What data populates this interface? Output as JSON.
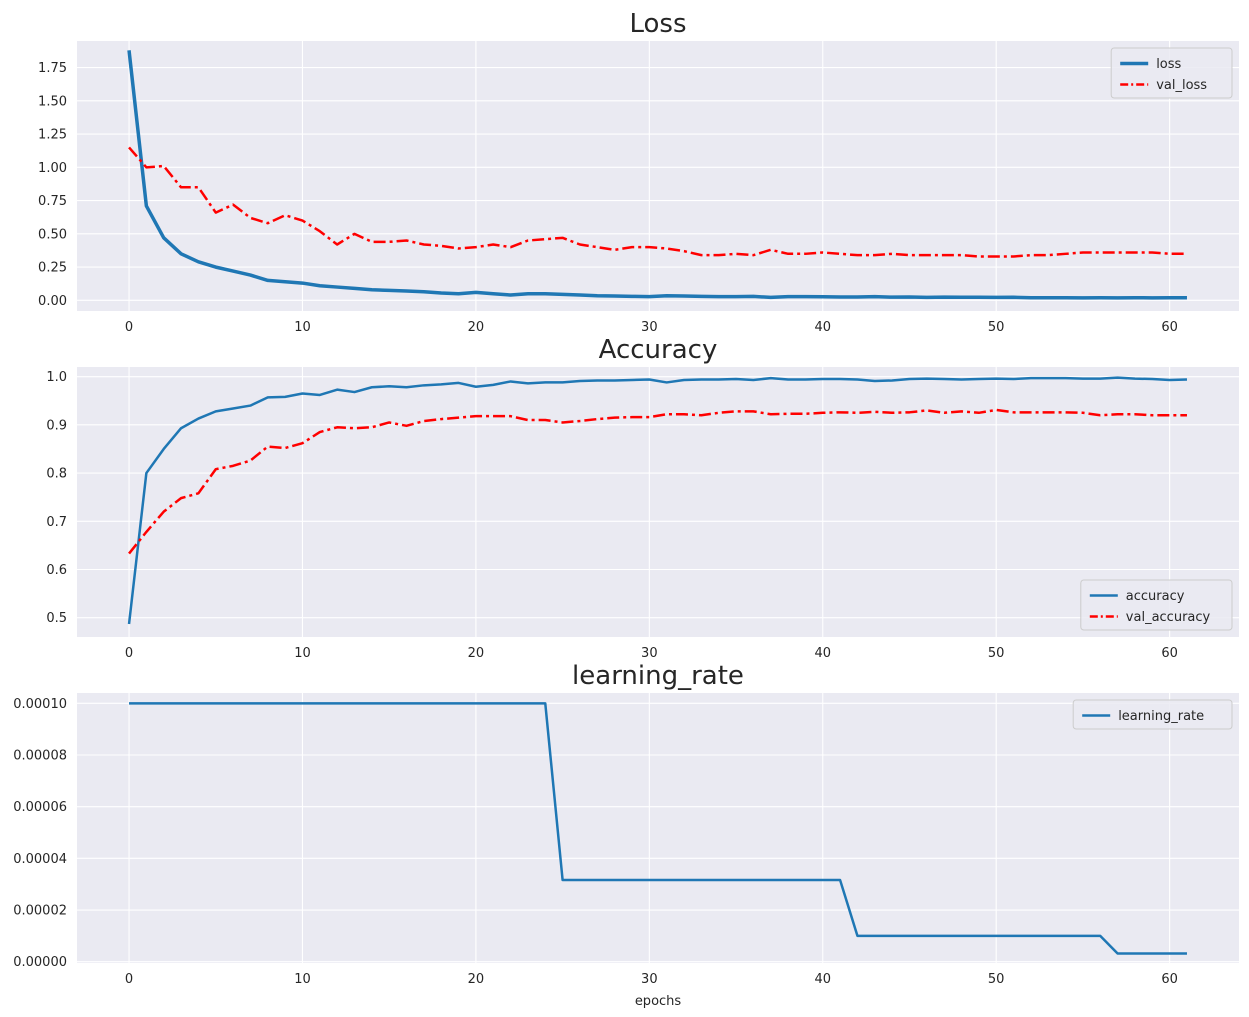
{
  "chart_data": [
    {
      "type": "line",
      "title": "Loss",
      "xlabel": "",
      "ylabel": "",
      "xlim": [
        -3,
        64
      ],
      "ylim": [
        -0.08,
        1.95
      ],
      "xticks": [
        0,
        10,
        20,
        30,
        40,
        50,
        60
      ],
      "yticks": [
        0,
        0.25,
        0.5,
        0.75,
        1.0,
        1.25,
        1.5,
        1.75
      ],
      "ytick_labels": [
        "0.00",
        "0.25",
        "0.50",
        "0.75",
        "1.00",
        "1.25",
        "1.50",
        "1.75"
      ],
      "grid": true,
      "legend_position": "upper right",
      "series": [
        {
          "name": "loss",
          "color": "#1f77b4",
          "style": "solid",
          "width": 3.5,
          "values": [
            1.88,
            0.71,
            0.47,
            0.35,
            0.29,
            0.25,
            0.22,
            0.19,
            0.15,
            0.14,
            0.13,
            0.11,
            0.1,
            0.09,
            0.08,
            0.075,
            0.07,
            0.065,
            0.055,
            0.05,
            0.06,
            0.05,
            0.04,
            0.05,
            0.05,
            0.045,
            0.04,
            0.035,
            0.033,
            0.03,
            0.028,
            0.035,
            0.033,
            0.03,
            0.028,
            0.028,
            0.03,
            0.022,
            0.028,
            0.028,
            0.027,
            0.025,
            0.025,
            0.028,
            0.024,
            0.025,
            0.022,
            0.024,
            0.023,
            0.023,
            0.022,
            0.023,
            0.02,
            0.02,
            0.02,
            0.019,
            0.02,
            0.019,
            0.02,
            0.019,
            0.02,
            0.02
          ]
        },
        {
          "name": "val_loss",
          "color": "#ff0000",
          "style": "dashdot",
          "width": 2.5,
          "values": [
            1.15,
            1.0,
            1.01,
            0.85,
            0.85,
            0.66,
            0.72,
            0.62,
            0.58,
            0.64,
            0.6,
            0.52,
            0.42,
            0.5,
            0.44,
            0.44,
            0.45,
            0.42,
            0.41,
            0.39,
            0.4,
            0.42,
            0.4,
            0.45,
            0.46,
            0.47,
            0.42,
            0.4,
            0.38,
            0.4,
            0.4,
            0.39,
            0.37,
            0.34,
            0.34,
            0.35,
            0.34,
            0.38,
            0.35,
            0.35,
            0.36,
            0.35,
            0.34,
            0.34,
            0.35,
            0.34,
            0.34,
            0.34,
            0.34,
            0.33,
            0.33,
            0.33,
            0.34,
            0.34,
            0.35,
            0.36,
            0.36,
            0.36,
            0.36,
            0.36,
            0.35,
            0.35
          ]
        }
      ]
    },
    {
      "type": "line",
      "title": "Accuracy",
      "xlabel": "",
      "ylabel": "",
      "xlim": [
        -3,
        64
      ],
      "ylim": [
        0.46,
        1.02
      ],
      "xticks": [
        0,
        10,
        20,
        30,
        40,
        50,
        60
      ],
      "yticks": [
        0.5,
        0.6,
        0.7,
        0.8,
        0.9,
        1.0
      ],
      "ytick_labels": [
        "0.5",
        "0.6",
        "0.7",
        "0.8",
        "0.9",
        "1.0"
      ],
      "grid": true,
      "legend_position": "lower right",
      "series": [
        {
          "name": "accuracy",
          "color": "#1f77b4",
          "style": "solid",
          "width": 2.5,
          "values": [
            0.487,
            0.8,
            0.85,
            0.893,
            0.913,
            0.928,
            0.934,
            0.94,
            0.957,
            0.958,
            0.965,
            0.962,
            0.973,
            0.968,
            0.978,
            0.98,
            0.978,
            0.982,
            0.984,
            0.987,
            0.979,
            0.983,
            0.99,
            0.986,
            0.988,
            0.988,
            0.991,
            0.992,
            0.992,
            0.993,
            0.994,
            0.988,
            0.993,
            0.994,
            0.994,
            0.995,
            0.993,
            0.997,
            0.994,
            0.994,
            0.995,
            0.995,
            0.994,
            0.991,
            0.992,
            0.995,
            0.996,
            0.995,
            0.994,
            0.995,
            0.996,
            0.995,
            0.997,
            0.997,
            0.997,
            0.996,
            0.996,
            0.998,
            0.996,
            0.995,
            0.993,
            0.994
          ]
        },
        {
          "name": "val_accuracy",
          "color": "#ff0000",
          "style": "dashdot",
          "width": 2.5,
          "values": [
            0.633,
            0.678,
            0.72,
            0.748,
            0.758,
            0.808,
            0.815,
            0.826,
            0.855,
            0.852,
            0.862,
            0.885,
            0.895,
            0.893,
            0.895,
            0.905,
            0.898,
            0.908,
            0.912,
            0.915,
            0.918,
            0.918,
            0.918,
            0.91,
            0.91,
            0.905,
            0.908,
            0.912,
            0.915,
            0.916,
            0.916,
            0.922,
            0.922,
            0.92,
            0.925,
            0.928,
            0.928,
            0.922,
            0.923,
            0.923,
            0.925,
            0.926,
            0.925,
            0.927,
            0.925,
            0.926,
            0.93,
            0.925,
            0.928,
            0.925,
            0.931,
            0.926,
            0.926,
            0.926,
            0.926,
            0.925,
            0.92,
            0.922,
            0.922,
            0.92,
            0.92,
            0.92
          ]
        }
      ]
    },
    {
      "type": "line",
      "title": "learning_rate",
      "xlabel": "epochs",
      "ylabel": "",
      "xlim": [
        -3,
        64
      ],
      "ylim": [
        -5e-07,
        0.000104
      ],
      "xticks": [
        0,
        10,
        20,
        30,
        40,
        50,
        60
      ],
      "yticks": [
        0,
        2e-05,
        4e-05,
        6e-05,
        8e-05,
        0.0001
      ],
      "ytick_labels": [
        "0.00000",
        "0.00002",
        "0.00004",
        "0.00006",
        "0.00008",
        "0.00010"
      ],
      "grid": true,
      "legend_position": "upper right",
      "series": [
        {
          "name": "learning_rate",
          "color": "#1f77b4",
          "style": "solid",
          "width": 2.5,
          "values": [
            0.0001,
            0.0001,
            0.0001,
            0.0001,
            0.0001,
            0.0001,
            0.0001,
            0.0001,
            0.0001,
            0.0001,
            0.0001,
            0.0001,
            0.0001,
            0.0001,
            0.0001,
            0.0001,
            0.0001,
            0.0001,
            0.0001,
            0.0001,
            0.0001,
            0.0001,
            0.0001,
            0.0001,
            0.0001,
            3.16e-05,
            3.16e-05,
            3.16e-05,
            3.16e-05,
            3.16e-05,
            3.16e-05,
            3.16e-05,
            3.16e-05,
            3.16e-05,
            3.16e-05,
            3.16e-05,
            3.16e-05,
            3.16e-05,
            3.16e-05,
            3.16e-05,
            3.16e-05,
            3.16e-05,
            1e-05,
            1e-05,
            1e-05,
            1e-05,
            1e-05,
            1e-05,
            1e-05,
            1e-05,
            1e-05,
            1e-05,
            1e-05,
            1e-05,
            1e-05,
            1e-05,
            1e-05,
            3.16e-06,
            3.16e-06,
            3.16e-06,
            3.16e-06,
            3.16e-06
          ]
        }
      ]
    }
  ]
}
